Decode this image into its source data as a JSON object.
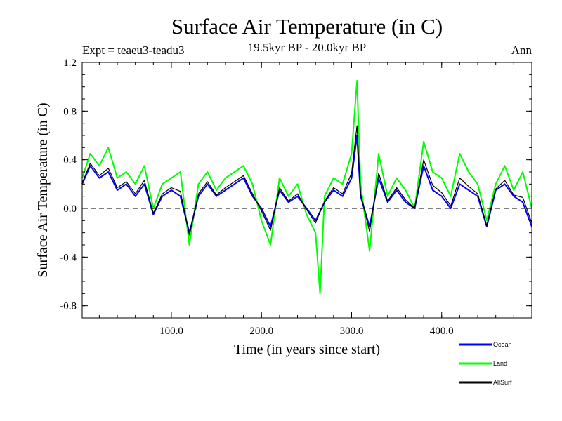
{
  "chart_data": {
    "type": "line",
    "title": "Surface Air Temperature (in C)",
    "subtitle": "19.5kyr BP - 20.0kyr BP",
    "experiment": "Expt = teaeu3-teadu3",
    "season": "Ann",
    "xlabel": "Time (in years since start)",
    "ylabel": "Surface Air Temperature (in C)",
    "xlim": [
      1,
      500
    ],
    "ylim": [
      -0.9,
      1.2
    ],
    "xticks": [
      {
        "value": 100,
        "label": "100.0"
      },
      {
        "value": 200,
        "label": "200.0"
      },
      {
        "value": 300,
        "label": "300.0"
      },
      {
        "value": 400,
        "label": "400.0"
      }
    ],
    "yticks": [
      {
        "value": 1.2,
        "label": "1.2"
      },
      {
        "value": 0.8,
        "label": "0.8"
      },
      {
        "value": 0.4,
        "label": "0.4"
      },
      {
        "value": 0.0,
        "label": "0.0"
      },
      {
        "value": -0.4,
        "label": "-0.4"
      },
      {
        "value": -0.8,
        "label": "-0.8"
      }
    ],
    "reference_line": 0,
    "series": [
      {
        "name": "Land",
        "color": "#00ff00",
        "x": [
          1,
          10,
          20,
          30,
          40,
          50,
          60,
          70,
          80,
          90,
          100,
          110,
          120,
          130,
          140,
          150,
          160,
          170,
          180,
          190,
          200,
          210,
          220,
          230,
          240,
          250,
          260,
          265,
          270,
          280,
          290,
          300,
          306,
          310,
          320,
          330,
          340,
          350,
          360,
          370,
          380,
          390,
          400,
          410,
          420,
          430,
          440,
          450,
          460,
          470,
          480,
          490,
          500
        ],
        "values": [
          0.25,
          0.45,
          0.35,
          0.5,
          0.25,
          0.3,
          0.2,
          0.35,
          0.0,
          0.2,
          0.25,
          0.3,
          -0.3,
          0.2,
          0.3,
          0.15,
          0.25,
          0.3,
          0.35,
          0.2,
          -0.1,
          -0.3,
          0.25,
          0.1,
          0.2,
          -0.05,
          -0.2,
          -0.7,
          0.1,
          0.25,
          0.2,
          0.45,
          1.05,
          0.2,
          -0.35,
          0.45,
          0.1,
          0.25,
          0.15,
          0.0,
          0.55,
          0.3,
          0.25,
          0.1,
          0.45,
          0.3,
          0.2,
          -0.1,
          0.2,
          0.35,
          0.15,
          0.3,
          0.0
        ]
      },
      {
        "name": "Ocean",
        "color": "#0000ff",
        "x": [
          1,
          10,
          20,
          30,
          40,
          50,
          60,
          70,
          80,
          90,
          100,
          110,
          120,
          130,
          140,
          150,
          160,
          170,
          180,
          190,
          200,
          210,
          220,
          230,
          240,
          250,
          260,
          270,
          280,
          290,
          300,
          306,
          310,
          320,
          330,
          340,
          350,
          360,
          370,
          380,
          390,
          400,
          410,
          420,
          430,
          440,
          450,
          460,
          470,
          480,
          490,
          500
        ],
        "values": [
          0.2,
          0.35,
          0.25,
          0.3,
          0.15,
          0.2,
          0.1,
          0.2,
          -0.05,
          0.1,
          0.15,
          0.1,
          -0.2,
          0.1,
          0.2,
          0.1,
          0.15,
          0.2,
          0.25,
          0.1,
          0.0,
          -0.15,
          0.15,
          0.05,
          0.1,
          0.0,
          -0.1,
          0.05,
          0.15,
          0.1,
          0.25,
          0.6,
          0.1,
          -0.15,
          0.25,
          0.05,
          0.15,
          0.05,
          0.0,
          0.35,
          0.15,
          0.1,
          0.0,
          0.2,
          0.15,
          0.1,
          -0.15,
          0.15,
          0.2,
          0.1,
          0.05,
          -0.15
        ]
      },
      {
        "name": "AllSurf",
        "color": "#000000",
        "x": [
          1,
          10,
          20,
          30,
          40,
          50,
          60,
          70,
          80,
          90,
          100,
          110,
          120,
          130,
          140,
          150,
          160,
          170,
          180,
          190,
          200,
          210,
          220,
          230,
          240,
          250,
          260,
          270,
          280,
          290,
          300,
          306,
          310,
          320,
          330,
          340,
          350,
          360,
          370,
          380,
          390,
          400,
          410,
          420,
          430,
          440,
          450,
          460,
          470,
          480,
          490,
          500
        ],
        "values": [
          0.21,
          0.37,
          0.27,
          0.33,
          0.17,
          0.22,
          0.12,
          0.23,
          -0.04,
          0.12,
          0.17,
          0.14,
          -0.22,
          0.12,
          0.22,
          0.11,
          0.17,
          0.22,
          0.27,
          0.12,
          -0.02,
          -0.18,
          0.17,
          0.06,
          0.12,
          -0.01,
          -0.12,
          0.06,
          0.17,
          0.12,
          0.29,
          0.68,
          0.12,
          -0.19,
          0.29,
          0.06,
          0.17,
          0.07,
          0.0,
          0.4,
          0.19,
          0.13,
          0.02,
          0.25,
          0.18,
          0.12,
          -0.14,
          0.16,
          0.23,
          0.11,
          0.09,
          -0.12
        ]
      }
    ]
  },
  "legend": [
    {
      "label": "Ocean",
      "color": "#0000ff"
    },
    {
      "label": "Land",
      "color": "#00ff00"
    },
    {
      "label": "AllSurf",
      "color": "#000000"
    }
  ]
}
